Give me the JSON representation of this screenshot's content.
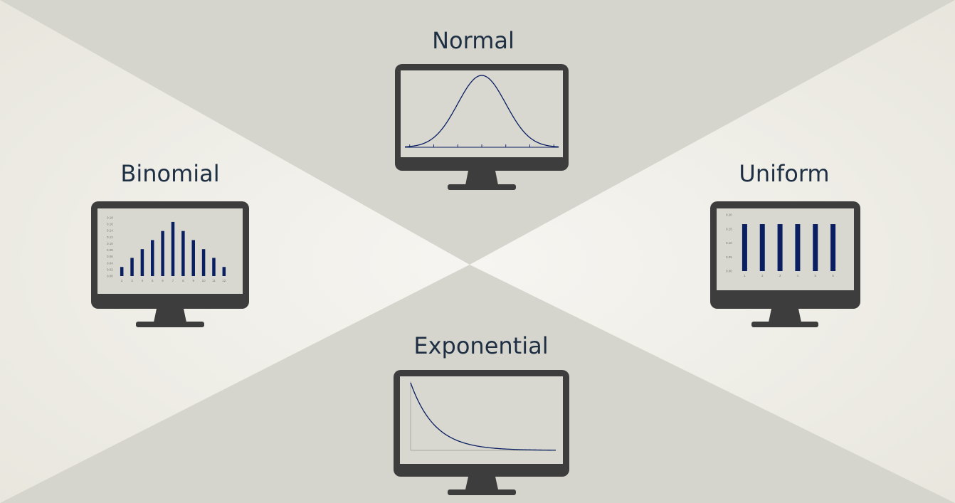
{
  "colors": {
    "background_light": "#efede6",
    "background_dark": "#d6d5cd",
    "label_text": "#1e2f44",
    "monitor_frame": "#3d3d3d",
    "screen": "#d8d7d0",
    "plot_blue": "#0a1f62"
  },
  "labels": {
    "normal": "Normal",
    "binomial": "Binomial",
    "uniform": "Uniform",
    "exponential": "Exponential"
  },
  "chart_data": [
    {
      "type": "line",
      "name_ref": "Normal",
      "function": "normal_pdf",
      "mean": 0,
      "sd": 1,
      "x_range": [
        -3.2,
        3.2
      ],
      "x_ticks": [
        -3,
        -2,
        -1,
        0,
        1,
        2,
        3
      ],
      "grid": false
    },
    {
      "type": "bar",
      "name_ref": "Binomial",
      "categories": [
        "2",
        "3",
        "4",
        "5",
        "6",
        "7",
        "8",
        "9",
        "10",
        "11",
        "12"
      ],
      "values": [
        0.028,
        0.056,
        0.083,
        0.111,
        0.139,
        0.167,
        0.139,
        0.111,
        0.083,
        0.056,
        0.028
      ],
      "y_ticks": [
        "0.00",
        "0.02",
        "0.04",
        "0.06",
        "0.08",
        "0.10",
        "0.12",
        "0.14",
        "0.16",
        "0.18"
      ],
      "ylim": [
        0,
        0.18
      ],
      "grid": false
    },
    {
      "type": "bar",
      "name_ref": "Uniform",
      "categories": [
        "1",
        "2",
        "3",
        "4",
        "5",
        "6"
      ],
      "values": [
        0.167,
        0.167,
        0.167,
        0.167,
        0.167,
        0.167
      ],
      "y_ticks": [
        "0.00",
        "0.05",
        "0.10",
        "0.15",
        "0.20"
      ],
      "ylim": [
        0,
        0.2
      ],
      "grid": false
    },
    {
      "type": "line",
      "name_ref": "Exponential",
      "function": "exponential_pdf",
      "lambda": 1,
      "x_range": [
        0,
        6
      ],
      "grid": false
    }
  ]
}
